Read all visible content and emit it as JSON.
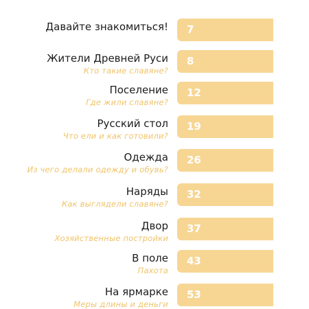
{
  "toc": {
    "entries": [
      {
        "title": "Давайте знакомиться!",
        "subtitle": "",
        "page": "7"
      },
      {
        "title": "Жители Древней Руси",
        "subtitle": "Кто такие славяне?",
        "page": "8"
      },
      {
        "title": "Поселение",
        "subtitle": "Где жили славяне?",
        "page": "12"
      },
      {
        "title": "Русский стол",
        "subtitle": "Что ели и как готовили?",
        "page": "19"
      },
      {
        "title": "Одежда",
        "subtitle": "Из чего делали одежду и обувь?",
        "page": "26"
      },
      {
        "title": "Наряды",
        "subtitle": "Как выглядели славяне?",
        "page": "32"
      },
      {
        "title": "Двор",
        "subtitle": "Хозяйственные постройки",
        "page": "37"
      },
      {
        "title": "В поле",
        "subtitle": "Пахота",
        "page": "43"
      },
      {
        "title": "На ярмарке",
        "subtitle": "Меры длины и деньги",
        "page": "53"
      }
    ]
  },
  "colors": {
    "tab": "#f7d694",
    "subtitle": "#efc46a",
    "title": "#1c1c1c",
    "page_number": "#ffffff"
  }
}
